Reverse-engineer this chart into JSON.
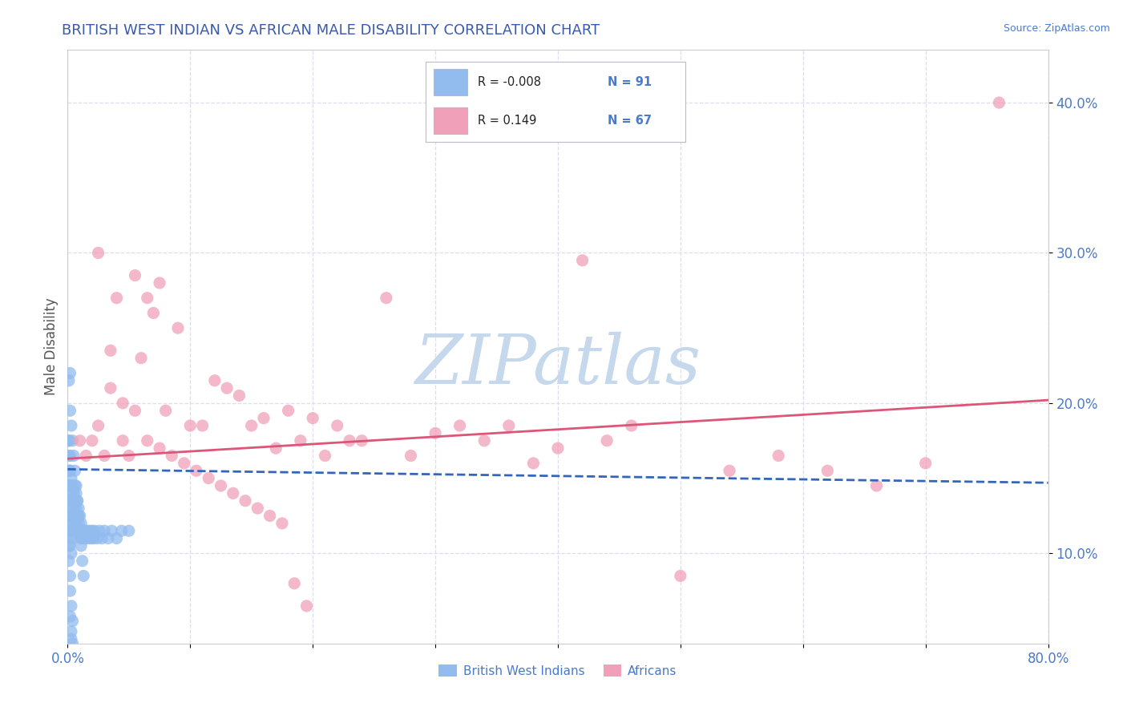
{
  "title": "BRITISH WEST INDIAN VS AFRICAN MALE DISABILITY CORRELATION CHART",
  "source_text": "Source: ZipAtlas.com",
  "ylabel": "Male Disability",
  "xlim": [
    0.0,
    0.8
  ],
  "ylim": [
    0.04,
    0.435
  ],
  "xticks": [
    0.0,
    0.1,
    0.2,
    0.3,
    0.4,
    0.5,
    0.6,
    0.7,
    0.8
  ],
  "xticklabels": [
    "0.0%",
    "",
    "",
    "",
    "",
    "",
    "",
    "",
    "80.0%"
  ],
  "yticks": [
    0.1,
    0.2,
    0.3,
    0.4
  ],
  "yticklabels": [
    "10.0%",
    "20.0%",
    "30.0%",
    "40.0%"
  ],
  "legend_r1": "R = -0.008",
  "legend_n1": "N = 91",
  "legend_r2": "R = 0.149",
  "legend_n2": "N = 67",
  "blue_color": "#92bbee",
  "pink_color": "#f0a0b8",
  "blue_line_color": "#3366bb",
  "pink_line_color": "#dd5577",
  "watermark": "ZIPatlas",
  "watermark_color": "#c5d8ec",
  "title_color": "#3a5aaa",
  "axis_label_color": "#555555",
  "tick_color": "#4a7acc",
  "source_color": "#4a7acc",
  "grid_color": "#ddddee",
  "blue_scatter_x": [
    0.001,
    0.001,
    0.001,
    0.001,
    0.001,
    0.001,
    0.001,
    0.001,
    0.001,
    0.002,
    0.002,
    0.002,
    0.002,
    0.002,
    0.002,
    0.002,
    0.003,
    0.003,
    0.003,
    0.003,
    0.003,
    0.003,
    0.004,
    0.004,
    0.004,
    0.004,
    0.005,
    0.005,
    0.005,
    0.005,
    0.006,
    0.006,
    0.006,
    0.007,
    0.007,
    0.007,
    0.008,
    0.008,
    0.009,
    0.009,
    0.01,
    0.01,
    0.011,
    0.011,
    0.012,
    0.013,
    0.014,
    0.015,
    0.016,
    0.017,
    0.018,
    0.019,
    0.02,
    0.021,
    0.022,
    0.024,
    0.026,
    0.028,
    0.03,
    0.033,
    0.036,
    0.04,
    0.044,
    0.05,
    0.001,
    0.001,
    0.002,
    0.002,
    0.002,
    0.003,
    0.003,
    0.004,
    0.004,
    0.005,
    0.005,
    0.006,
    0.007,
    0.008,
    0.009,
    0.01,
    0.011,
    0.012,
    0.013,
    0.002,
    0.003,
    0.004,
    0.003,
    0.003,
    0.004,
    0.002,
    0.002
  ],
  "blue_scatter_y": [
    0.155,
    0.165,
    0.175,
    0.145,
    0.135,
    0.125,
    0.115,
    0.105,
    0.095,
    0.155,
    0.145,
    0.135,
    0.125,
    0.115,
    0.105,
    0.085,
    0.15,
    0.14,
    0.13,
    0.12,
    0.11,
    0.1,
    0.145,
    0.135,
    0.125,
    0.115,
    0.14,
    0.13,
    0.12,
    0.11,
    0.145,
    0.135,
    0.125,
    0.14,
    0.13,
    0.12,
    0.135,
    0.125,
    0.13,
    0.12,
    0.125,
    0.115,
    0.12,
    0.11,
    0.115,
    0.11,
    0.115,
    0.11,
    0.115,
    0.11,
    0.115,
    0.11,
    0.115,
    0.11,
    0.115,
    0.11,
    0.115,
    0.11,
    0.115,
    0.11,
    0.115,
    0.11,
    0.115,
    0.115,
    0.215,
    0.175,
    0.195,
    0.165,
    0.155,
    0.185,
    0.145,
    0.175,
    0.135,
    0.165,
    0.125,
    0.155,
    0.145,
    0.135,
    0.125,
    0.115,
    0.105,
    0.095,
    0.085,
    0.075,
    0.065,
    0.055,
    0.048,
    0.043,
    0.04,
    0.22,
    0.058
  ],
  "pink_scatter_x": [
    0.01,
    0.015,
    0.02,
    0.025,
    0.03,
    0.035,
    0.04,
    0.045,
    0.05,
    0.055,
    0.06,
    0.065,
    0.07,
    0.075,
    0.08,
    0.09,
    0.1,
    0.11,
    0.12,
    0.13,
    0.14,
    0.15,
    0.16,
    0.17,
    0.18,
    0.19,
    0.2,
    0.22,
    0.24,
    0.26,
    0.28,
    0.3,
    0.32,
    0.34,
    0.36,
    0.38,
    0.4,
    0.42,
    0.44,
    0.46,
    0.5,
    0.54,
    0.58,
    0.62,
    0.66,
    0.7,
    0.76,
    0.025,
    0.035,
    0.045,
    0.055,
    0.065,
    0.075,
    0.085,
    0.095,
    0.105,
    0.115,
    0.125,
    0.135,
    0.145,
    0.155,
    0.165,
    0.175,
    0.185,
    0.195,
    0.21,
    0.23
  ],
  "pink_scatter_y": [
    0.175,
    0.165,
    0.175,
    0.185,
    0.165,
    0.21,
    0.27,
    0.2,
    0.165,
    0.195,
    0.23,
    0.27,
    0.26,
    0.28,
    0.195,
    0.25,
    0.185,
    0.185,
    0.215,
    0.21,
    0.205,
    0.185,
    0.19,
    0.17,
    0.195,
    0.175,
    0.19,
    0.185,
    0.175,
    0.27,
    0.165,
    0.18,
    0.185,
    0.175,
    0.185,
    0.16,
    0.17,
    0.295,
    0.175,
    0.185,
    0.085,
    0.155,
    0.165,
    0.155,
    0.145,
    0.16,
    0.4,
    0.3,
    0.235,
    0.175,
    0.285,
    0.175,
    0.17,
    0.165,
    0.16,
    0.155,
    0.15,
    0.145,
    0.14,
    0.135,
    0.13,
    0.125,
    0.12,
    0.08,
    0.065,
    0.165,
    0.175
  ],
  "blue_trend_x": [
    0.0,
    0.8
  ],
  "blue_trend_y": [
    0.156,
    0.147
  ],
  "pink_trend_x": [
    0.0,
    0.8
  ],
  "pink_trend_y": [
    0.163,
    0.202
  ]
}
